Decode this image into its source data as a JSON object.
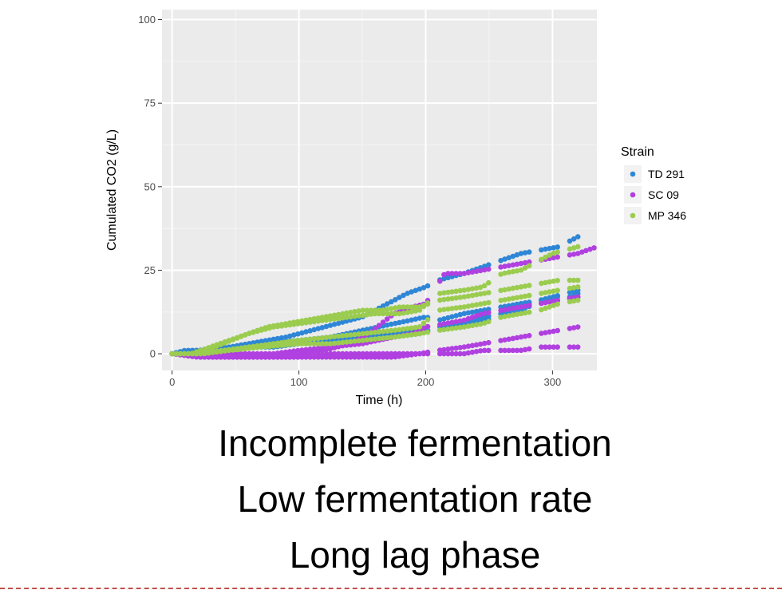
{
  "chart_data": {
    "type": "scatter",
    "xlabel": "Time (h)",
    "ylabel": "Cumulated CO2 (g/L)",
    "xlim": [
      -8,
      335
    ],
    "ylim": [
      -5,
      103
    ],
    "xticks": [
      0,
      100,
      200,
      300
    ],
    "yticks": [
      0,
      25,
      50,
      75,
      100
    ],
    "grid": true,
    "legend": {
      "title": "Strain",
      "placement": "right"
    },
    "series": [
      {
        "name": "TD 291",
        "color": "#2f86d6",
        "curves": [
          [
            [
              0,
              0
            ],
            [
              10,
              1
            ],
            [
              25,
              1
            ],
            [
              50,
              2
            ],
            [
              75,
              3
            ],
            [
              100,
              4
            ],
            [
              125,
              4
            ],
            [
              150,
              5
            ],
            [
              175,
              5
            ],
            [
              195,
              6
            ],
            [
              210,
              8
            ],
            [
              230,
              9
            ],
            [
              245,
              10
            ],
            [
              260,
              11
            ],
            [
              270,
              12
            ],
            [
              280,
              14
            ],
            [
              290,
              15
            ],
            [
              300,
              17
            ],
            [
              310,
              18
            ],
            [
              320,
              19
            ]
          ],
          [
            [
              0,
              0
            ],
            [
              15,
              1
            ],
            [
              40,
              1
            ],
            [
              60,
              2
            ],
            [
              80,
              2
            ],
            [
              100,
              3
            ],
            [
              125,
              4
            ],
            [
              150,
              5
            ],
            [
              175,
              6
            ],
            [
              195,
              7
            ],
            [
              210,
              7
            ],
            [
              230,
              9
            ],
            [
              245,
              11
            ],
            [
              260,
              12
            ],
            [
              275,
              14
            ],
            [
              290,
              16
            ],
            [
              300,
              17
            ],
            [
              315,
              17
            ],
            [
              320,
              18
            ]
          ],
          [
            [
              0,
              0
            ],
            [
              20,
              1
            ],
            [
              45,
              2
            ],
            [
              70,
              3
            ],
            [
              100,
              4
            ],
            [
              125,
              5
            ],
            [
              150,
              7
            ],
            [
              175,
              9
            ],
            [
              200,
              11
            ],
            [
              210,
              10
            ],
            [
              230,
              12
            ],
            [
              245,
              13
            ],
            [
              260,
              14
            ],
            [
              275,
              15
            ],
            [
              290,
              16
            ],
            [
              305,
              16
            ],
            [
              320,
              17
            ]
          ],
          [
            [
              0,
              0
            ],
            [
              15,
              0
            ],
            [
              30,
              1
            ],
            [
              60,
              3
            ],
            [
              90,
              5
            ],
            [
              110,
              7
            ],
            [
              130,
              9
            ],
            [
              150,
              11
            ],
            [
              170,
              15
            ],
            [
              185,
              18
            ],
            [
              200,
              20
            ],
            [
              210,
              22
            ],
            [
              230,
              24
            ],
            [
              245,
              26
            ],
            [
              260,
              28
            ],
            [
              275,
              30
            ],
            [
              290,
              31
            ],
            [
              305,
              32
            ],
            [
              315,
              34
            ],
            [
              320,
              35
            ]
          ]
        ]
      },
      {
        "name": "SC 09",
        "color": "#b040e0",
        "curves": [
          [
            [
              0,
              0
            ],
            [
              20,
              -1
            ],
            [
              40,
              -1
            ],
            [
              60,
              -1
            ],
            [
              80,
              -1
            ],
            [
              100,
              -1
            ],
            [
              125,
              0
            ],
            [
              150,
              0
            ],
            [
              175,
              0
            ],
            [
              195,
              0
            ],
            [
              210,
              0
            ],
            [
              230,
              0
            ],
            [
              245,
              1
            ],
            [
              260,
              1
            ],
            [
              275,
              1
            ],
            [
              290,
              2
            ],
            [
              305,
              2
            ],
            [
              320,
              2
            ]
          ],
          [
            [
              0,
              0
            ],
            [
              20,
              -1
            ],
            [
              40,
              -1
            ],
            [
              60,
              -1
            ],
            [
              80,
              -1
            ],
            [
              100,
              -1
            ],
            [
              125,
              -1
            ],
            [
              150,
              -1
            ],
            [
              175,
              -1
            ],
            [
              195,
              0
            ],
            [
              210,
              1
            ],
            [
              230,
              2
            ],
            [
              245,
              3
            ],
            [
              260,
              4
            ],
            [
              275,
              5
            ],
            [
              290,
              6
            ],
            [
              305,
              7
            ],
            [
              320,
              8
            ]
          ],
          [
            [
              0,
              0
            ],
            [
              30,
              -1
            ],
            [
              60,
              -1
            ],
            [
              80,
              -1
            ],
            [
              100,
              0
            ],
            [
              120,
              1
            ],
            [
              140,
              3
            ],
            [
              155,
              6
            ],
            [
              165,
              9
            ],
            [
              175,
              12
            ],
            [
              190,
              14
            ],
            [
              200,
              15
            ],
            [
              215,
              24
            ],
            [
              230,
              24
            ],
            [
              245,
              25
            ],
            [
              260,
              26
            ],
            [
              275,
              27
            ],
            [
              290,
              28
            ],
            [
              305,
              29
            ],
            [
              320,
              30
            ],
            [
              335,
              32
            ]
          ],
          [
            [
              0,
              0
            ],
            [
              25,
              0
            ],
            [
              50,
              0
            ],
            [
              80,
              0
            ],
            [
              100,
              1
            ],
            [
              125,
              2
            ],
            [
              150,
              3
            ],
            [
              175,
              5
            ],
            [
              190,
              6
            ],
            [
              200,
              8
            ],
            [
              215,
              9
            ],
            [
              230,
              10
            ],
            [
              245,
              12
            ],
            [
              260,
              13
            ],
            [
              275,
              14
            ],
            [
              290,
              15
            ],
            [
              305,
              16
            ],
            [
              320,
              17
            ]
          ]
        ]
      },
      {
        "name": "MP 346",
        "color": "#9bcc4f",
        "curves": [
          [
            [
              0,
              0
            ],
            [
              15,
              0
            ],
            [
              30,
              2
            ],
            [
              45,
              4
            ],
            [
              60,
              6
            ],
            [
              75,
              8
            ],
            [
              90,
              9
            ],
            [
              105,
              10
            ],
            [
              120,
              11
            ],
            [
              135,
              12
            ],
            [
              150,
              13
            ],
            [
              165,
              13
            ],
            [
              180,
              14
            ],
            [
              195,
              14
            ],
            [
              210,
              16
            ],
            [
              230,
              17
            ],
            [
              245,
              18
            ],
            [
              260,
              19
            ],
            [
              275,
              20
            ],
            [
              290,
              21
            ],
            [
              305,
              22
            ],
            [
              320,
              22
            ]
          ],
          [
            [
              0,
              0
            ],
            [
              20,
              0
            ],
            [
              40,
              1
            ],
            [
              60,
              2
            ],
            [
              80,
              3
            ],
            [
              100,
              4
            ],
            [
              125,
              5
            ],
            [
              150,
              6
            ],
            [
              175,
              7
            ],
            [
              195,
              8
            ],
            [
              210,
              13
            ],
            [
              230,
              14
            ],
            [
              245,
              15
            ],
            [
              260,
              16
            ],
            [
              275,
              17
            ],
            [
              290,
              18
            ],
            [
              305,
              19
            ],
            [
              320,
              20
            ]
          ],
          [
            [
              0,
              0
            ],
            [
              25,
              0
            ],
            [
              45,
              1
            ],
            [
              70,
              2
            ],
            [
              100,
              3
            ],
            [
              125,
              3
            ],
            [
              150,
              4
            ],
            [
              175,
              5
            ],
            [
              195,
              6
            ],
            [
              210,
              7
            ],
            [
              230,
              8
            ],
            [
              245,
              9
            ],
            [
              260,
              11
            ],
            [
              275,
              12
            ],
            [
              290,
              13
            ],
            [
              305,
              15
            ],
            [
              320,
              16
            ]
          ],
          [
            [
              0,
              0
            ],
            [
              20,
              0
            ],
            [
              40,
              3
            ],
            [
              60,
              6
            ],
            [
              80,
              8
            ],
            [
              100,
              9
            ],
            [
              120,
              10
            ],
            [
              140,
              11
            ],
            [
              160,
              12
            ],
            [
              180,
              12
            ],
            [
              195,
              13
            ],
            [
              210,
              18
            ],
            [
              230,
              19
            ],
            [
              245,
              20
            ],
            [
              260,
              24
            ],
            [
              275,
              25
            ],
            [
              290,
              28
            ],
            [
              300,
              30
            ],
            [
              310,
              31
            ],
            [
              320,
              32
            ]
          ]
        ]
      }
    ]
  },
  "captions": {
    "line1": "Incomplete fermentation",
    "line2": "Low fermentation rate",
    "line3": "Long lag phase"
  }
}
